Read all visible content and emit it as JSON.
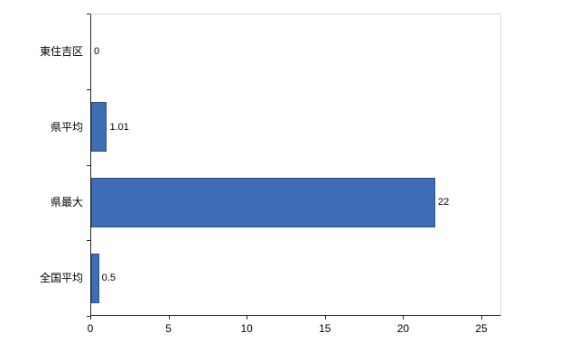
{
  "chart": {
    "background": "#ffffff",
    "bar_color": "#3d6eb5",
    "bar_border_color": "#2a5183",
    "axis_color": "#262626",
    "plot_border_color": "#d9d9d9",
    "text_color": "#000000"
  },
  "chart_data": {
    "type": "bar",
    "orientation": "horizontal",
    "title": "",
    "categories": [
      "東住吉区",
      "県平均",
      "県最大",
      "全国平均"
    ],
    "values": [
      0,
      1.01,
      22,
      0.5
    ],
    "value_labels": [
      "0",
      "1.01",
      "22",
      "0.5"
    ],
    "x_ticks": [
      0,
      5,
      10,
      15,
      20,
      25
    ],
    "xlim": [
      0,
      26.3
    ],
    "ylabel": "",
    "xlabel": "",
    "grid": false,
    "legend": false
  }
}
